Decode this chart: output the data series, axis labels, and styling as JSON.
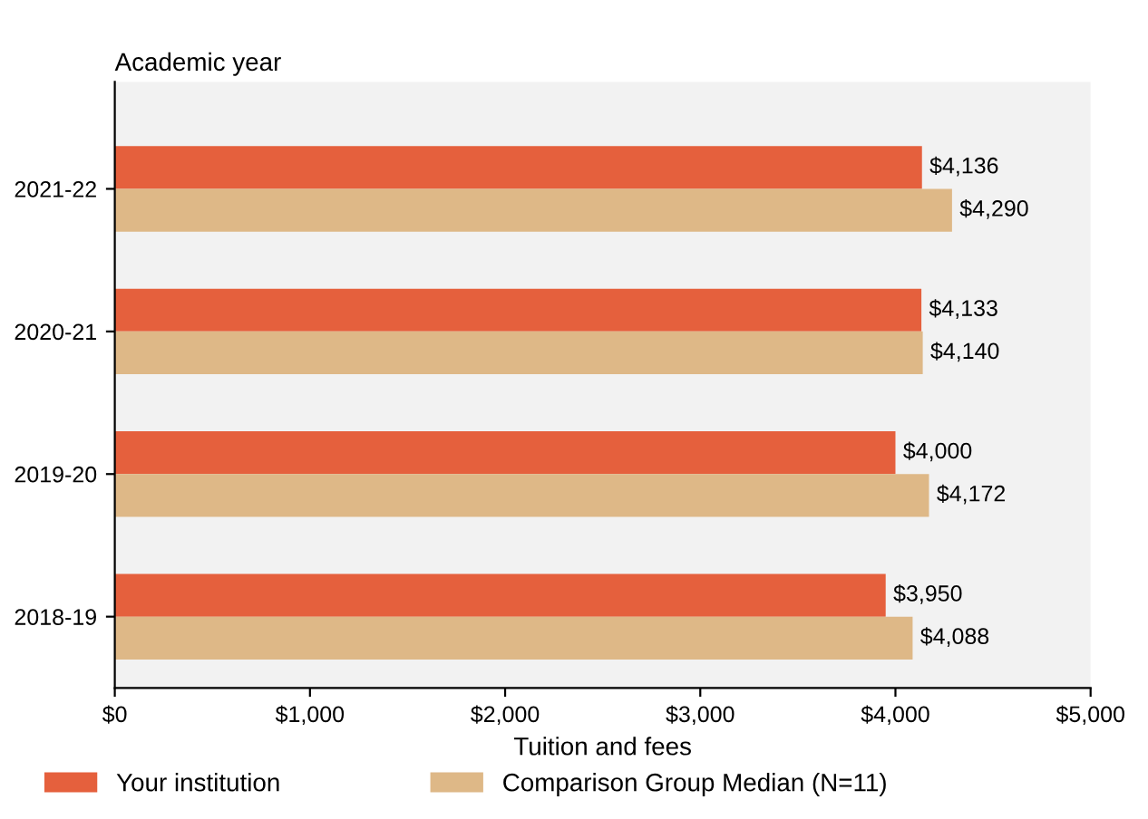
{
  "chart_data": {
    "type": "bar",
    "orientation": "horizontal",
    "ylabel": "Academic year",
    "xlabel": "Tuition and fees",
    "categories": [
      "2021-22",
      "2020-21",
      "2019-20",
      "2018-19"
    ],
    "series": [
      {
        "name": "Your institution",
        "color": "#e5603d",
        "values": [
          4136,
          4133,
          4000,
          3950
        ],
        "value_labels": [
          "$4,136",
          "$4,133",
          "$4,000",
          "$3,950"
        ]
      },
      {
        "name": "Comparison Group Median (N=11)",
        "color": "#deb887",
        "values": [
          4290,
          4140,
          4172,
          4088
        ],
        "value_labels": [
          "$4,290",
          "$4,140",
          "$4,172",
          "$4,088"
        ]
      }
    ],
    "xlim": [
      0,
      5000
    ],
    "xticks": [
      {
        "value": 0,
        "label": "$0"
      },
      {
        "value": 1000,
        "label": "$1,000"
      },
      {
        "value": 2000,
        "label": "$2,000"
      },
      {
        "value": 3000,
        "label": "$3,000"
      },
      {
        "value": 4000,
        "label": "$4,000"
      },
      {
        "value": 5000,
        "label": "$5,000"
      }
    ],
    "legend": "bottom",
    "grid": false
  }
}
